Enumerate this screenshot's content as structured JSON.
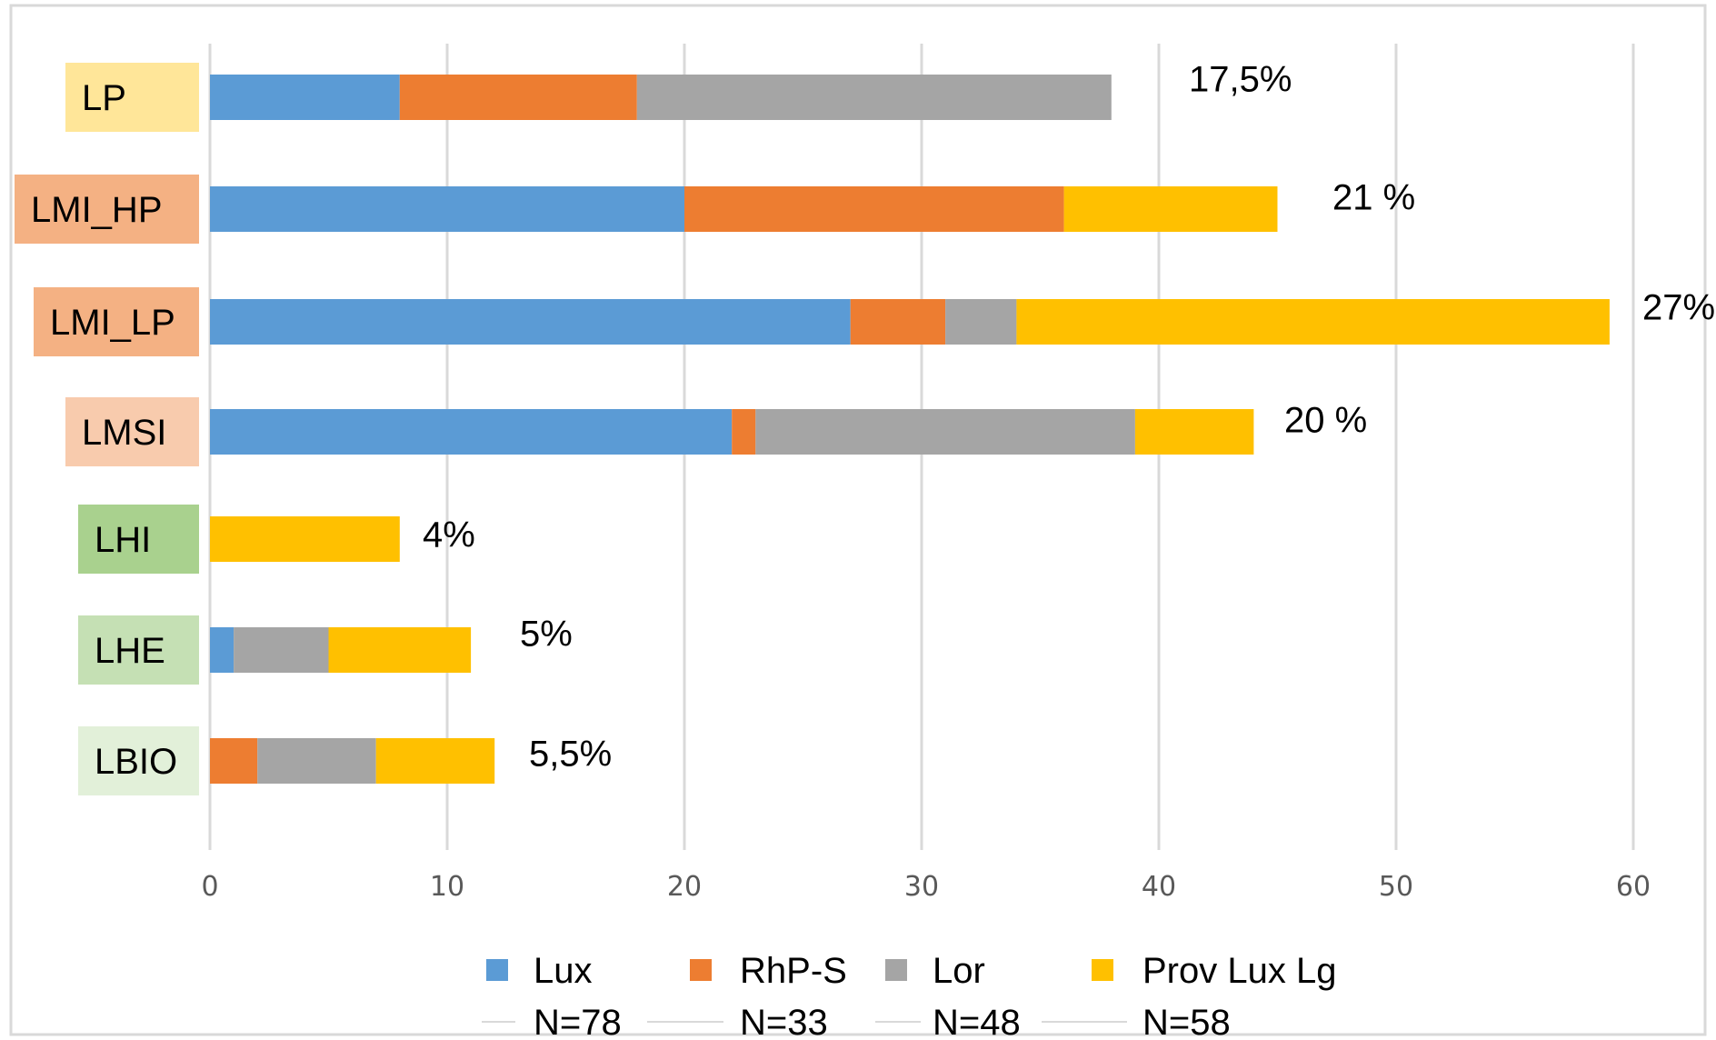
{
  "chart_data": {
    "type": "bar",
    "orientation": "horizontal",
    "stacked": true,
    "categories": [
      "LP",
      "LMI_HP",
      "LMI_LP",
      "LMSI",
      "LHI",
      "LHE",
      "LBIO"
    ],
    "category_colors": [
      "#ffe699",
      "#f4b183",
      "#f4b183",
      "#f8cbad",
      "#a9d18e",
      "#c5e0b4",
      "#e2f0d9"
    ],
    "series": [
      {
        "name": "Lux",
        "n_label": "N=78",
        "color": "#5b9bd5",
        "values": [
          8,
          20,
          27,
          22,
          0,
          1,
          0
        ]
      },
      {
        "name": "RhP-S",
        "n_label": "N=33",
        "color": "#ed7d31",
        "values": [
          10,
          16,
          4,
          1,
          0,
          0,
          2
        ]
      },
      {
        "name": "Lor",
        "n_label": "N=48",
        "color": "#a5a5a5",
        "values": [
          20,
          0,
          3,
          16,
          0,
          4,
          5
        ]
      },
      {
        "name": "Prov Lux Lg",
        "n_label": "N=58",
        "color": "#ffc000",
        "values": [
          0,
          9,
          25,
          5,
          8,
          6,
          5
        ]
      }
    ],
    "percent_labels": [
      "17,5%",
      "21 %",
      "27%",
      "20 %",
      "4%",
      "5%",
      "5,5%"
    ],
    "xlim": [
      0,
      60
    ],
    "x_ticks": [
      "0",
      "10",
      "20",
      "30",
      "40",
      "50",
      "60"
    ],
    "grid": true,
    "legend_position": "bottom"
  }
}
